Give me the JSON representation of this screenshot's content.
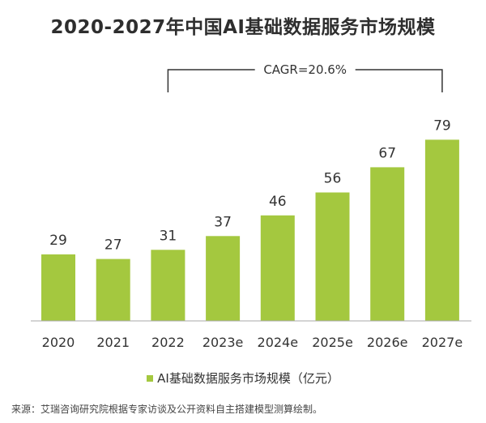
{
  "title": "2020-2027年中国AI基础数据服务市场规模",
  "cagr_label": "CAGR=20.6%",
  "legend_label": "AI基础数据服务市场规模（亿元）",
  "source": "来源：艾瑞咨询研究院根据专家访谈及公开资料自主搭建模型测算绘制。",
  "colors": {
    "bar": "#a4c83f",
    "axis": "#aaaaaa",
    "bracket": "#333333"
  },
  "chart_data": {
    "type": "bar",
    "title": "2020-2027年中国AI基础数据服务市场规模",
    "categories": [
      "2020",
      "2021",
      "2022",
      "2023e",
      "2024e",
      "2025e",
      "2026e",
      "2027e"
    ],
    "series": [
      {
        "name": "AI基础数据服务市场规模（亿元）",
        "values": [
          29,
          27,
          31,
          37,
          46,
          56,
          67,
          79
        ]
      }
    ],
    "data_labels": [
      "29",
      "27",
      "31",
      "37",
      "46",
      "56",
      "67",
      "79"
    ],
    "ylim": [
      0,
      90
    ],
    "annotation": {
      "text": "CAGR=20.6%",
      "from": "2022",
      "to": "2027e"
    },
    "legend_position": "bottom"
  }
}
